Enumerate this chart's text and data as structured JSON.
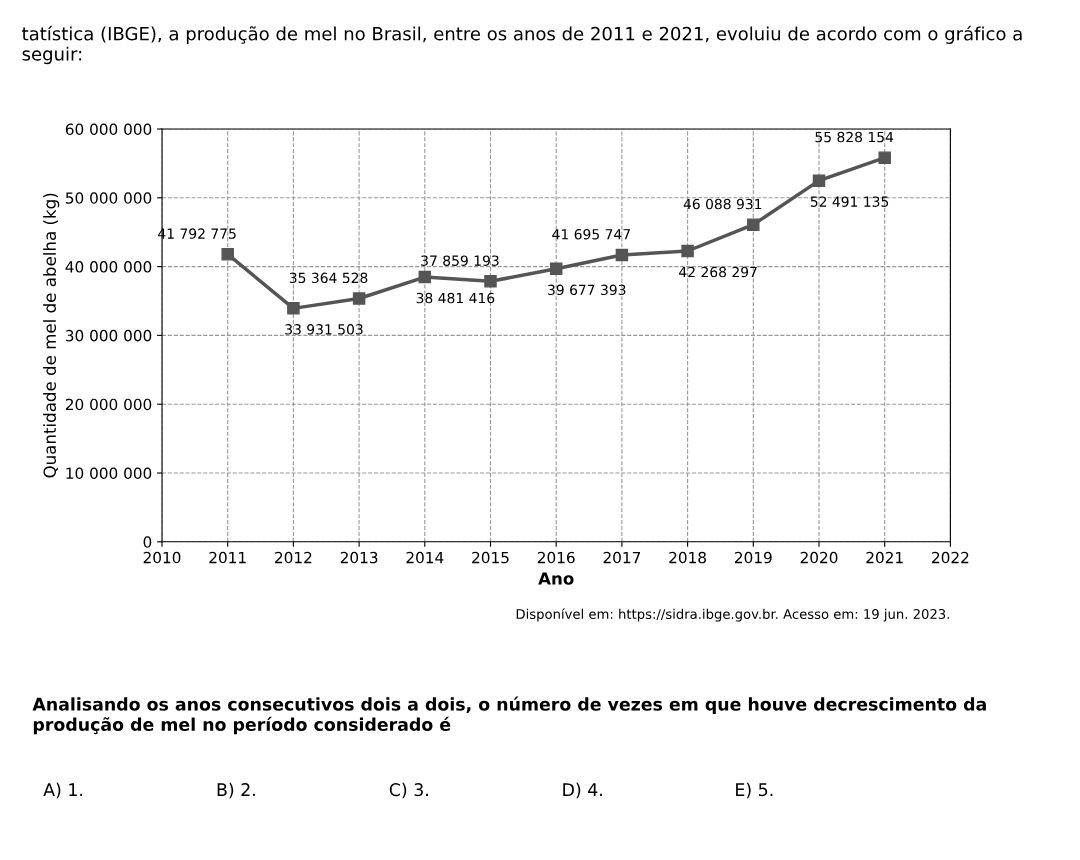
{
  "chart_data": {
    "type": "line",
    "title": "tatística (IBGE), a produção de mel no Brasil, entre os anos de 2011 e 2021, evoluiu de acordo com o gráfico a seguir:",
    "xlabel": "Ano",
    "ylabel": "Quantidade de mel de abelha (kg)",
    "x": [
      2011,
      2012,
      2013,
      2014,
      2015,
      2016,
      2017,
      2018,
      2019,
      2020,
      2021
    ],
    "series": [
      {
        "color": "#555555",
        "values": [
          41792775,
          33931503,
          35364528,
          38481416,
          37859193,
          39677393,
          41695747,
          42268297,
          46088931,
          52491135,
          55828154
        ],
        "value_labels": [
          "41 792 775",
          "33 931 503",
          "35 364 528",
          "38 481 416",
          "37 859 193",
          "39 677 393",
          "41 695 747",
          "42 268 297",
          "46 088 931",
          "52 491 135",
          "55 828 154"
        ]
      }
    ],
    "xlim": [
      2010,
      2022
    ],
    "xticks": [
      2010,
      2011,
      2012,
      2013,
      2014,
      2015,
      2016,
      2017,
      2018,
      2019,
      2020,
      2021,
      2022
    ],
    "ylim": [
      0,
      60000000
    ],
    "yticks": [
      {
        "value": 0,
        "label": "0"
      },
      {
        "value": 10000000,
        "label": "10 000 000"
      },
      {
        "value": 20000000,
        "label": "20 000 000"
      },
      {
        "value": 30000000,
        "label": "30 000 000"
      },
      {
        "value": 40000000,
        "label": "40 000 000"
      },
      {
        "value": 50000000,
        "label": "50 000 000"
      },
      {
        "value": 60000000,
        "label": "60 000 000"
      }
    ],
    "grid": true,
    "marker": "square",
    "line_style": "solid",
    "annotations": [
      "Disponível em: https://sidra.ibge.gov.br. Acesso em: 19 jun. 2023.",
      "Analisando os anos consecutivos dois a dois, o número de vezes em que houve decrescimento da produção de mel no período considerado é",
      "A) 1.",
      "B) 2.",
      "C) 3.",
      "D) 4.",
      "E) 5."
    ]
  }
}
